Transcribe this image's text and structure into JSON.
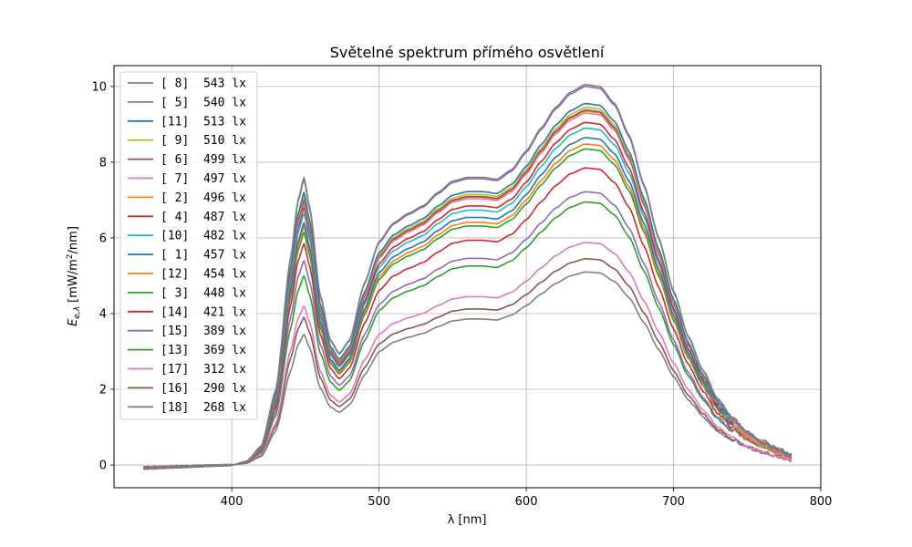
{
  "chart_data": {
    "type": "line",
    "title": "Světelné spektrum přímého osvětlení",
    "xlabel": "λ [nm]",
    "ylabel_main": "E",
    "ylabel_sub": "e,λ",
    "ylabel_unit_prefix": " [mW/m",
    "ylabel_unit_sup": "2",
    "ylabel_unit_suffix": "/nm]",
    "xlim": [
      320,
      800
    ],
    "ylim": [
      -0.6,
      10.55
    ],
    "xticks": [
      400,
      500,
      600,
      700,
      800
    ],
    "yticks": [
      0,
      2,
      4,
      6,
      8,
      10
    ],
    "grid": true,
    "legend_position": "upper-left",
    "x_range": [
      340,
      780
    ],
    "base_profile": {
      "x": [
        340,
        400,
        410,
        420,
        430,
        440,
        445,
        449,
        453,
        460,
        467,
        473,
        480,
        490,
        500,
        510,
        520,
        530,
        540,
        550,
        560,
        570,
        580,
        590,
        600,
        610,
        620,
        630,
        640,
        650,
        660,
        670,
        680,
        690,
        700,
        710,
        720,
        730,
        740,
        750,
        760,
        770,
        780
      ],
      "y": [
        -0.1,
        0.0,
        0.1,
        0.5,
        2.0,
        5.5,
        7.0,
        7.6,
        6.8,
        4.5,
        3.3,
        2.95,
        3.3,
        4.8,
        5.9,
        6.4,
        6.65,
        6.85,
        7.2,
        7.5,
        7.6,
        7.6,
        7.55,
        7.8,
        8.3,
        8.9,
        9.45,
        9.85,
        10.05,
        10.0,
        9.55,
        8.7,
        7.4,
        6.0,
        4.6,
        3.4,
        2.5,
        1.75,
        1.25,
        0.85,
        0.6,
        0.4,
        0.2
      ]
    },
    "series": [
      {
        "name": "[ 8]  543 lx",
        "color": "#7f7f7f",
        "peak": 10.05,
        "blue_peak": 7.6
      },
      {
        "name": "[ 5]  540 lx",
        "color": "#9467bd",
        "peak": 10.0,
        "blue_peak": 7.55
      },
      {
        "name": "[11]  513 lx",
        "color": "#1f77b4",
        "peak": 9.55,
        "blue_peak": 7.2
      },
      {
        "name": "[ 9]  510 lx",
        "color": "#bcbd22",
        "peak": 9.45,
        "blue_peak": 7.1
      },
      {
        "name": "[ 6]  499 lx",
        "color": "#8c564b",
        "peak": 9.38,
        "blue_peak": 7.0
      },
      {
        "name": "[ 7]  497 lx",
        "color": "#e377c2",
        "peak": 9.3,
        "blue_peak": 6.9
      },
      {
        "name": "[ 2]  496 lx",
        "color": "#ff7f0e",
        "peak": 9.35,
        "blue_peak": 6.95
      },
      {
        "name": "[ 4]  487 lx",
        "color": "#d62728",
        "peak": 9.05,
        "blue_peak": 6.8
      },
      {
        "name": "[10]  482 lx",
        "color": "#17becf",
        "peak": 8.9,
        "blue_peak": 6.65
      },
      {
        "name": "[ 1]  457 lx",
        "color": "#1f77b4",
        "peak": 8.65,
        "blue_peak": 6.4
      },
      {
        "name": "[12]  454 lx",
        "color": "#ff7f0e",
        "peak": 8.48,
        "blue_peak": 6.3
      },
      {
        "name": "[ 3]  448 lx",
        "color": "#2ca02c",
        "peak": 8.35,
        "blue_peak": 6.15
      },
      {
        "name": "[14]  421 lx",
        "color": "#d62728",
        "peak": 7.85,
        "blue_peak": 5.85
      },
      {
        "name": "[15]  389 lx",
        "color": "#9467bd",
        "peak": 7.22,
        "blue_peak": 5.4
      },
      {
        "name": "[13]  369 lx",
        "color": "#2ca02c",
        "peak": 6.95,
        "blue_peak": 5.0
      },
      {
        "name": "[17]  312 lx",
        "color": "#e377c2",
        "peak": 5.88,
        "blue_peak": 4.2
      },
      {
        "name": "[16]  290 lx",
        "color": "#8c564b",
        "peak": 5.45,
        "blue_peak": 3.9
      },
      {
        "name": "[18]  268 lx",
        "color": "#7f7f7f",
        "peak": 5.1,
        "blue_peak": 3.45
      }
    ]
  }
}
